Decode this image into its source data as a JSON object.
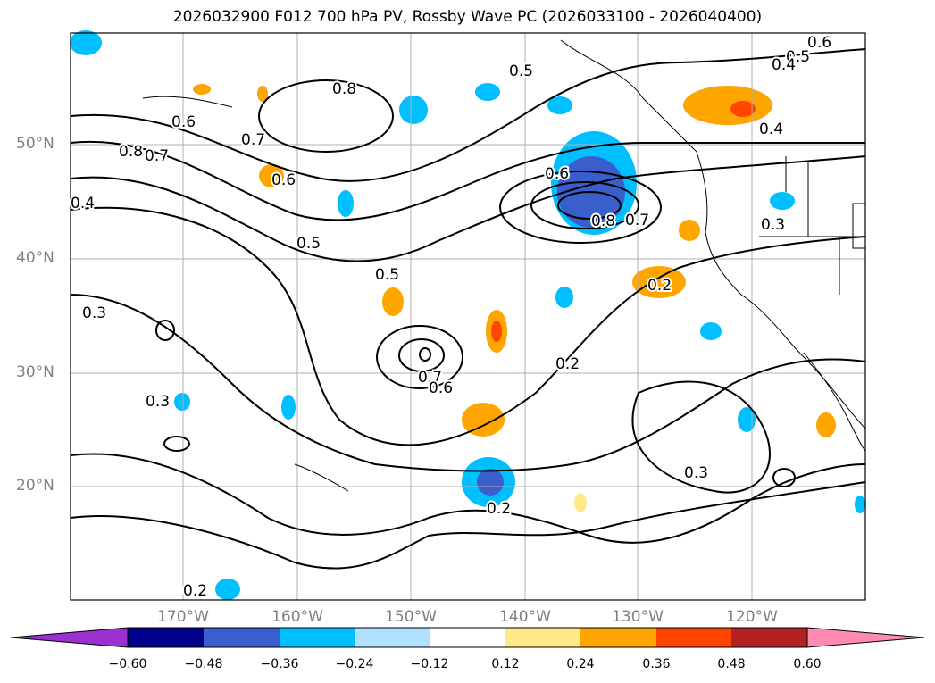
{
  "title": "2026032900 F012 700 hPa PV, Rossby Wave PC (2026033100 - 2026040400)",
  "map": {
    "lat_labels": [
      "50°N",
      "40°N",
      "30°N",
      "20°N"
    ],
    "lon_labels": [
      "170°W",
      "160°W",
      "150°W",
      "140°W",
      "130°W",
      "120°W"
    ],
    "contour_labels": [
      "0.6",
      "0.5",
      "0.4",
      "0.8",
      "0.6",
      "0.8",
      "0.7",
      "0.7",
      "0.6",
      "0.4",
      "0.5",
      "0.5",
      "0.6",
      "0.8",
      "0.7",
      "0.4",
      "0.3",
      "0.2",
      "0.2",
      "0.7",
      "0.6",
      "0.3",
      "0.2",
      "0.3",
      "0.3",
      "0.2",
      "0.5"
    ]
  },
  "colorbar": {
    "ticks": [
      "−0.60",
      "−0.48",
      "−0.36",
      "−0.24",
      "−0.12",
      "0.12",
      "0.24",
      "0.36",
      "0.48",
      "0.60"
    ],
    "colors": [
      "#9b30d0",
      "#00008b",
      "#3a5fcd",
      "#00bfff",
      "#b0e2ff",
      "#ffffff",
      "#ffe989",
      "#ffa500",
      "#ff4500",
      "#b22222",
      "#ff8cb0"
    ]
  }
}
